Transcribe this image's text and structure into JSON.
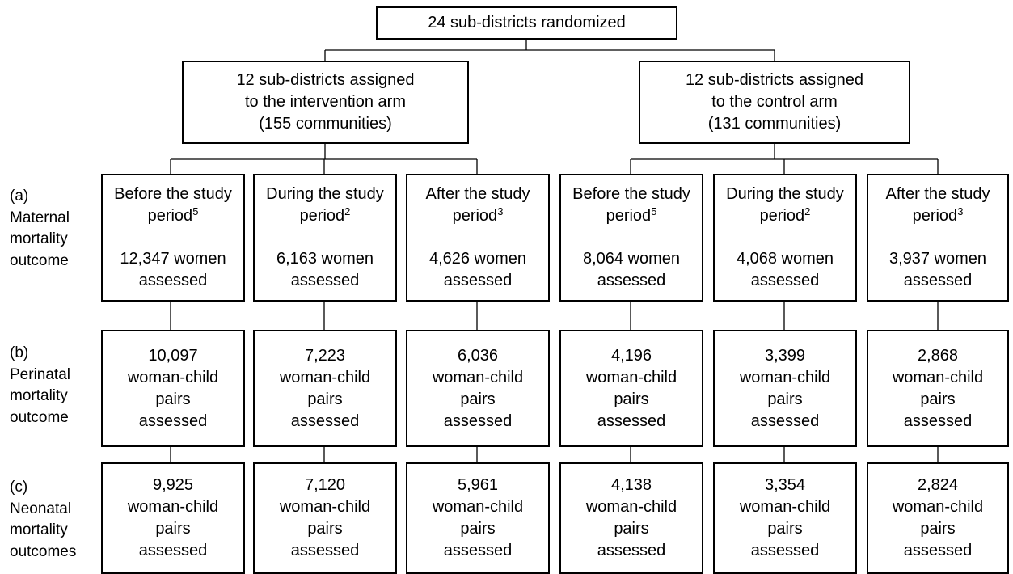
{
  "top": {
    "label": "24 sub-districts randomized"
  },
  "arms": [
    {
      "lines": [
        "12 sub-districts assigned",
        "to the intervention arm",
        "(155 communities)"
      ]
    },
    {
      "lines": [
        "12 sub-districts assigned",
        "to the control arm",
        "(131 communities)"
      ]
    }
  ],
  "rows": [
    {
      "label_lines": [
        "(a)",
        "Maternal",
        "mortality",
        "outcome"
      ],
      "cells": [
        {
          "title_lines": [
            "Before the study",
            "period"
          ],
          "footnote": "5",
          "body_lines": [
            "12,347 women",
            "assessed"
          ]
        },
        {
          "title_lines": [
            "During the study",
            "period"
          ],
          "footnote": "2",
          "body_lines": [
            "6,163 women",
            "assessed"
          ]
        },
        {
          "title_lines": [
            "After the study",
            "period"
          ],
          "footnote": "3",
          "body_lines": [
            "4,626 women",
            "assessed"
          ]
        },
        {
          "title_lines": [
            "Before the study",
            "period"
          ],
          "footnote": "5",
          "body_lines": [
            "8,064 women",
            "assessed"
          ]
        },
        {
          "title_lines": [
            "During the study",
            "period"
          ],
          "footnote": "2",
          "body_lines": [
            "4,068 women",
            "assessed"
          ]
        },
        {
          "title_lines": [
            "After the study",
            "period"
          ],
          "footnote": "3",
          "body_lines": [
            "3,937 women",
            "assessed"
          ]
        }
      ]
    },
    {
      "label_lines": [
        "(b)",
        "Perinatal",
        "mortality",
        "outcome"
      ],
      "cells": [
        {
          "body_lines": [
            "10,097",
            "woman-child",
            "pairs",
            "assessed"
          ]
        },
        {
          "body_lines": [
            "7,223",
            "woman-child",
            "pairs",
            "assessed"
          ]
        },
        {
          "body_lines": [
            "6,036",
            "woman-child",
            "pairs",
            "assessed"
          ]
        },
        {
          "body_lines": [
            "4,196",
            "woman-child",
            "pairs",
            "assessed"
          ]
        },
        {
          "body_lines": [
            "3,399",
            "woman-child",
            "pairs",
            "assessed"
          ]
        },
        {
          "body_lines": [
            "2,868",
            "woman-child",
            "pairs",
            "assessed"
          ]
        }
      ]
    },
    {
      "label_lines": [
        "(c)",
        "Neonatal",
        "mortality",
        "outcomes"
      ],
      "cells": [
        {
          "body_lines": [
            "9,925",
            "woman-child",
            "pairs",
            "assessed"
          ]
        },
        {
          "body_lines": [
            "7,120",
            "woman-child",
            "pairs",
            "assessed"
          ]
        },
        {
          "body_lines": [
            "5,961",
            "woman-child",
            "pairs",
            "assessed"
          ]
        },
        {
          "body_lines": [
            "4,138",
            "woman-child",
            "pairs",
            "assessed"
          ]
        },
        {
          "body_lines": [
            "3,354",
            "woman-child",
            "pairs",
            "assessed"
          ]
        },
        {
          "body_lines": [
            "2,824",
            "woman-child",
            "pairs",
            "assessed"
          ]
        }
      ]
    }
  ]
}
